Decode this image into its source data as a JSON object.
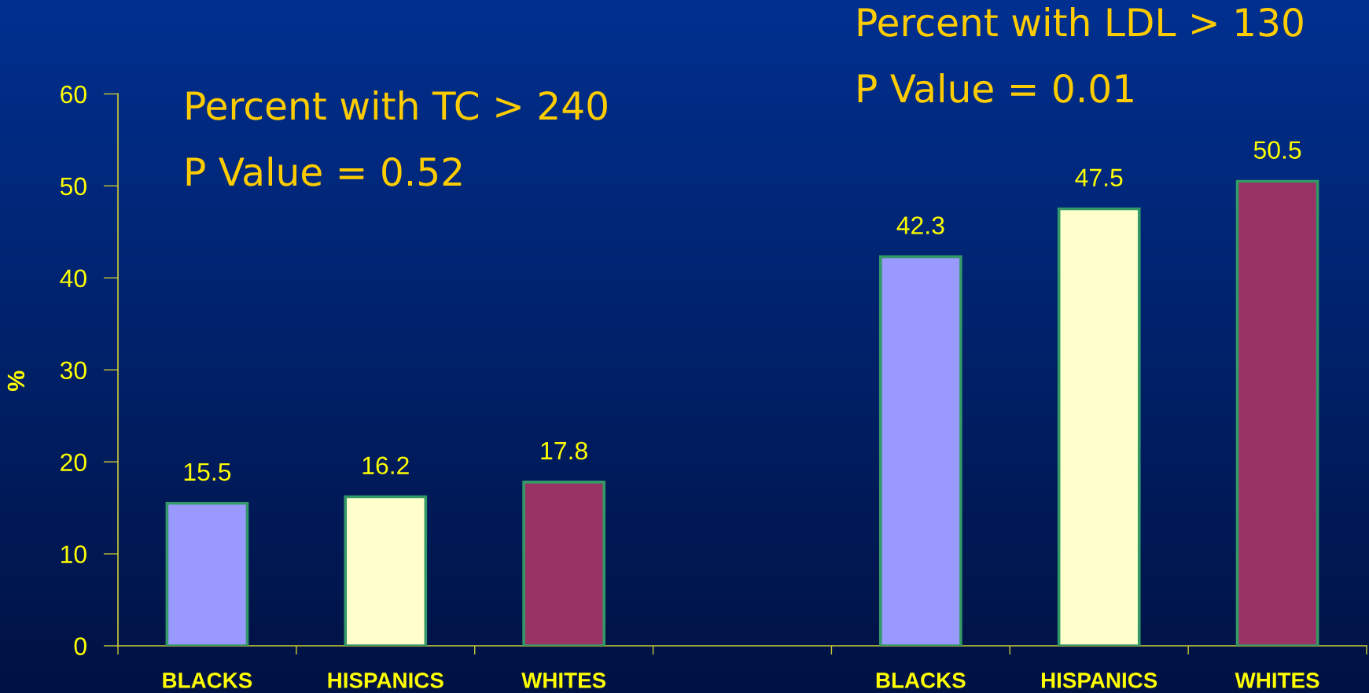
{
  "chart_data": {
    "type": "bar",
    "categories": [
      "BLACKS",
      "HISPANICS",
      "WHITES",
      null,
      "BLACKS",
      "HISPANICS",
      "WHITES"
    ],
    "values": [
      15.5,
      16.2,
      17.8,
      null,
      42.3,
      47.5,
      50.5
    ],
    "colors": [
      "#9999ff",
      "#ffffcc",
      "#993366",
      null,
      "#9999ff",
      "#ffffcc",
      "#993366"
    ],
    "ylabel": "%",
    "ylim": [
      0,
      60
    ],
    "yticks": [
      0,
      10,
      20,
      30,
      40,
      50,
      60
    ],
    "data_labels": true,
    "annotations": [
      "Percent with TC > 240",
      "P Value = 0.52",
      "Percent with LDL > 130",
      "P Value = 0.01"
    ]
  }
}
